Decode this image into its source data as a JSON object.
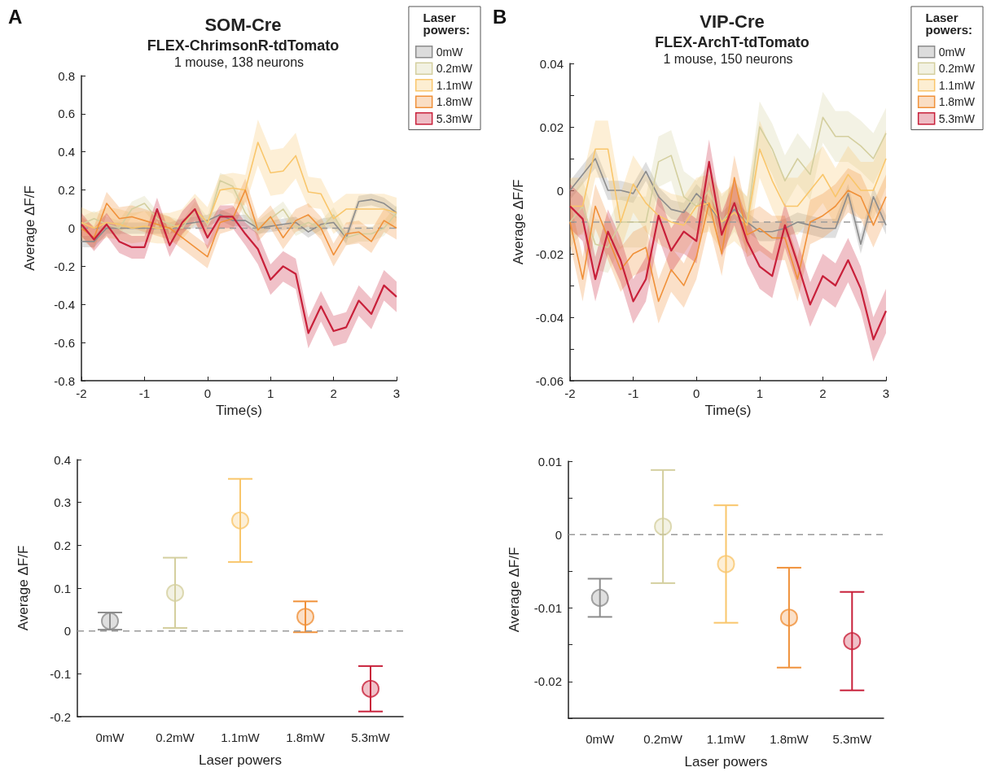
{
  "chart_data": [
    {
      "type": "line",
      "title": "SOM-Cre",
      "subtitle": "FLEX-ChrimsonR-tdTomato",
      "annotations": [
        "A",
        "1 mouse, 138 neurons"
      ],
      "xlabel": "Time(s)",
      "ylabel": "Average ΔF/F",
      "legend_title": "Laser powers:",
      "legend": "top right",
      "marker": "none",
      "x": [
        -2,
        -1.8,
        -1.6,
        -1.4,
        -1.2,
        -1,
        -0.8,
        -0.6,
        -0.4,
        -0.2,
        0,
        0.2,
        0.4,
        0.6,
        0.8,
        1,
        1.2,
        1.4,
        1.6,
        1.8,
        2,
        2.2,
        2.4,
        2.6,
        2.8,
        3
      ],
      "xlim": [
        -2,
        3
      ],
      "xticks": [
        -2,
        -1,
        0,
        1,
        2,
        3
      ],
      "ylim": [
        -0.8,
        0.8
      ],
      "yticks": [
        -0.8,
        -0.6,
        -0.4,
        -0.2,
        0,
        0.2,
        0.4,
        0.6,
        0.8
      ],
      "ref_lines": [
        {
          "axis": "y",
          "value": 0,
          "color": "#9a9a9a",
          "line_style": "dashed"
        }
      ],
      "series": [
        {
          "name": "0mW",
          "color": "#8c8c8c",
          "values": [
            -0.07,
            -0.07,
            0,
            0,
            0,
            0,
            0,
            0,
            0.02,
            0.03,
            0.04,
            0.07,
            0.04,
            0.04,
            0,
            0.01,
            0.02,
            0.03,
            -0.02,
            0.02,
            0.03,
            -0.05,
            0.14,
            0.15,
            0.13,
            0.08
          ],
          "lower": [
            -0.1,
            -0.1,
            -0.03,
            -0.03,
            -0.03,
            -0.03,
            -0.03,
            -0.03,
            -0.01,
            0,
            0.01,
            0.04,
            0.01,
            0.01,
            -0.03,
            -0.02,
            -0.01,
            0,
            -0.05,
            -0.01,
            0,
            -0.08,
            0.11,
            0.12,
            0.1,
            0.05
          ],
          "upper": [
            -0.04,
            -0.04,
            0.03,
            0.03,
            0.03,
            0.03,
            0.03,
            0.03,
            0.05,
            0.06,
            0.07,
            0.1,
            0.07,
            0.07,
            0.03,
            0.04,
            0.05,
            0.06,
            0.01,
            0.05,
            0.06,
            -0.02,
            0.17,
            0.18,
            0.16,
            0.11
          ]
        },
        {
          "name": "0.2mW",
          "color": "#d4cf9f",
          "values": [
            0.02,
            0.05,
            0.02,
            0,
            0.1,
            0.13,
            0.05,
            0.02,
            0,
            0.1,
            0.02,
            0.25,
            0.22,
            0.08,
            0,
            0.05,
            0.1,
            0,
            0.03,
            0,
            0.07,
            -0.05,
            -0.03,
            -0.03,
            0,
            0.08
          ],
          "lower": [
            -0.02,
            0.01,
            -0.02,
            -0.04,
            0.06,
            0.09,
            0.01,
            -0.02,
            -0.04,
            0.06,
            -0.02,
            0.21,
            0.18,
            0.04,
            -0.04,
            0.01,
            0.06,
            -0.04,
            -0.01,
            -0.04,
            0.03,
            -0.09,
            -0.07,
            -0.07,
            -0.04,
            0.04
          ],
          "upper": [
            0.06,
            0.09,
            0.06,
            0.04,
            0.14,
            0.17,
            0.09,
            0.06,
            0.04,
            0.14,
            0.06,
            0.29,
            0.26,
            0.12,
            0.04,
            0.09,
            0.14,
            0.04,
            0.07,
            0.04,
            0.11,
            -0.01,
            0.01,
            0.01,
            0.04,
            0.12
          ]
        },
        {
          "name": "1.1mW",
          "color": "#f9c66b",
          "values": [
            0.03,
            0,
            0.03,
            0.02,
            0,
            0.01,
            0,
            0,
            0.02,
            0.1,
            0.03,
            0.2,
            0.21,
            0.2,
            0.45,
            0.29,
            0.3,
            0.38,
            0.19,
            0.18,
            0.05,
            0.1,
            0.1,
            0.1,
            0.1,
            0.08
          ],
          "lower": [
            -0.05,
            -0.08,
            -0.05,
            -0.06,
            -0.08,
            -0.07,
            -0.08,
            -0.08,
            -0.06,
            0.02,
            -0.05,
            0.12,
            0.13,
            0.12,
            0.33,
            0.17,
            0.18,
            0.26,
            0.11,
            0.1,
            -0.03,
            0.02,
            0.02,
            0.02,
            0.02,
            0
          ],
          "upper": [
            0.11,
            0.08,
            0.11,
            0.1,
            0.08,
            0.09,
            0.08,
            0.08,
            0.1,
            0.18,
            0.11,
            0.28,
            0.29,
            0.28,
            0.57,
            0.41,
            0.42,
            0.5,
            0.27,
            0.26,
            0.13,
            0.18,
            0.18,
            0.18,
            0.18,
            0.16
          ]
        },
        {
          "name": "1.8mW",
          "color": "#f0913a",
          "values": [
            0,
            -0.05,
            0.13,
            0.05,
            0.06,
            0.04,
            0.02,
            0,
            -0.05,
            -0.1,
            -0.15,
            0.03,
            0.05,
            0.2,
            -0.01,
            0.06,
            -0.05,
            0.04,
            0.07,
            0,
            -0.14,
            -0.03,
            -0.02,
            -0.07,
            0.04,
            0
          ],
          "lower": [
            -0.06,
            -0.11,
            0.07,
            -0.01,
            0,
            -0.02,
            -0.04,
            -0.06,
            -0.11,
            -0.16,
            -0.21,
            -0.03,
            -0.01,
            0.14,
            -0.07,
            0,
            -0.11,
            -0.02,
            0.01,
            -0.06,
            -0.2,
            -0.09,
            -0.08,
            -0.13,
            -0.02,
            -0.06
          ],
          "upper": [
            0.06,
            0.01,
            0.19,
            0.11,
            0.12,
            0.1,
            0.08,
            0.06,
            0.01,
            -0.04,
            -0.09,
            0.09,
            0.11,
            0.26,
            0.05,
            0.12,
            0.01,
            0.1,
            0.13,
            0.06,
            -0.08,
            0.03,
            0.04,
            -0.01,
            0.1,
            0.06
          ]
        },
        {
          "name": "5.3mW",
          "color": "#c8203a",
          "values": [
            0.02,
            -0.06,
            0.02,
            -0.07,
            -0.1,
            -0.1,
            0.1,
            -0.09,
            0.03,
            0.1,
            -0.05,
            0.06,
            0.06,
            -0.03,
            -0.11,
            -0.27,
            -0.2,
            -0.24,
            -0.55,
            -0.41,
            -0.54,
            -0.52,
            -0.38,
            -0.45,
            -0.3,
            -0.36
          ],
          "lower": [
            -0.04,
            -0.12,
            -0.04,
            -0.13,
            -0.16,
            -0.16,
            0.04,
            -0.15,
            -0.03,
            0.04,
            -0.11,
            0,
            0,
            -0.09,
            -0.19,
            -0.35,
            -0.28,
            -0.32,
            -0.63,
            -0.49,
            -0.62,
            -0.6,
            -0.46,
            -0.53,
            -0.38,
            -0.44
          ],
          "upper": [
            0.08,
            0,
            0.08,
            -0.01,
            -0.04,
            -0.04,
            0.16,
            -0.03,
            0.09,
            0.16,
            0.01,
            0.12,
            0.12,
            0.03,
            -0.03,
            -0.19,
            -0.12,
            -0.16,
            -0.47,
            -0.33,
            -0.46,
            -0.44,
            -0.3,
            -0.37,
            -0.22,
            -0.28
          ]
        }
      ]
    },
    {
      "type": "line",
      "title": "VIP-Cre",
      "subtitle": "FLEX-ArchT-tdTomato",
      "annotations": [
        "B",
        "1 mouse, 150 neurons"
      ],
      "xlabel": "Time(s)",
      "ylabel": "Average ΔF/F",
      "legend_title": "Laser powers:",
      "legend": "top right",
      "marker": "none",
      "x": [
        -2,
        -1.8,
        -1.6,
        -1.4,
        -1.2,
        -1,
        -0.8,
        -0.6,
        -0.4,
        -0.2,
        0,
        0.2,
        0.4,
        0.6,
        0.8,
        1,
        1.2,
        1.4,
        1.6,
        1.8,
        2,
        2.2,
        2.4,
        2.6,
        2.8,
        3
      ],
      "xlim": [
        -2,
        3
      ],
      "xticks": [
        -2,
        -1,
        0,
        1,
        2,
        3
      ],
      "ylim": [
        -0.06,
        0.04
      ],
      "yticks": [
        -0.06,
        {
          "value": -0.05,
          "label": null
        },
        -0.04,
        {
          "value": -0.03,
          "label": null
        },
        -0.02,
        {
          "value": -0.01,
          "label": null
        },
        0,
        {
          "value": 0.01,
          "label": null
        },
        0.02,
        {
          "value": 0.03,
          "label": null
        },
        0.04
      ],
      "ref_lines": [
        {
          "axis": "y",
          "value": -0.01,
          "color": "#9a9a9a",
          "line_style": "dashed"
        }
      ],
      "series": [
        {
          "name": "0mW",
          "color": "#8c8c8c",
          "values": [
            0,
            0.005,
            0.01,
            0,
            0,
            -0.001,
            0.006,
            -0.002,
            -0.006,
            -0.007,
            -0.001,
            -0.005,
            -0.01,
            -0.006,
            -0.01,
            -0.013,
            -0.013,
            -0.012,
            -0.01,
            -0.011,
            -0.012,
            -0.012,
            -0.001,
            -0.017,
            -0.002,
            -0.011
          ],
          "lower": [
            -0.003,
            0.002,
            0.007,
            -0.003,
            -0.003,
            -0.004,
            0.003,
            -0.005,
            -0.009,
            -0.01,
            -0.004,
            -0.008,
            -0.013,
            -0.009,
            -0.013,
            -0.016,
            -0.016,
            -0.015,
            -0.013,
            -0.014,
            -0.015,
            -0.015,
            -0.004,
            -0.02,
            -0.005,
            -0.014
          ],
          "upper": [
            0.003,
            0.008,
            0.013,
            0.003,
            0.003,
            0.002,
            0.009,
            0.001,
            -0.003,
            -0.004,
            0.002,
            -0.002,
            -0.007,
            -0.003,
            -0.007,
            -0.01,
            -0.01,
            -0.009,
            -0.007,
            -0.008,
            -0.009,
            -0.009,
            0.002,
            -0.014,
            0.001,
            -0.008
          ]
        },
        {
          "name": "0.2mW",
          "color": "#d4cf9f",
          "values": [
            -0.01,
            -0.005,
            -0.017,
            -0.018,
            -0.01,
            -0.01,
            -0.01,
            0.009,
            0.011,
            -0.002,
            -0.005,
            0,
            -0.01,
            -0.005,
            -0.01,
            0.02,
            0.013,
            0.003,
            0.01,
            0.005,
            0.023,
            0.017,
            0.017,
            0.014,
            0.01,
            0.018
          ],
          "lower": [
            -0.018,
            -0.013,
            -0.025,
            -0.026,
            -0.018,
            -0.018,
            -0.018,
            0.001,
            0.003,
            -0.01,
            -0.013,
            -0.008,
            -0.018,
            -0.013,
            -0.018,
            0.012,
            0.005,
            -0.005,
            0.002,
            -0.003,
            0.015,
            0.009,
            0.009,
            0.006,
            0.002,
            0.01
          ],
          "upper": [
            -0.002,
            0.003,
            -0.009,
            -0.01,
            -0.002,
            -0.002,
            -0.002,
            0.017,
            0.019,
            0.006,
            0.003,
            0.008,
            -0.002,
            0.003,
            -0.002,
            0.028,
            0.021,
            0.011,
            0.018,
            0.013,
            0.031,
            0.025,
            0.025,
            0.022,
            0.018,
            0.026
          ]
        },
        {
          "name": "1.1mW",
          "color": "#f9c66b",
          "values": [
            -0.005,
            -0.005,
            0.013,
            0.013,
            -0.01,
            0.002,
            -0.004,
            -0.008,
            -0.01,
            -0.011,
            -0.005,
            -0.004,
            -0.01,
            -0.007,
            -0.011,
            0.013,
            0.003,
            -0.005,
            -0.005,
            0,
            0.005,
            -0.002,
            0.005,
            0,
            0,
            0.01
          ],
          "lower": [
            -0.014,
            -0.014,
            0.004,
            0.004,
            -0.019,
            -0.007,
            -0.013,
            -0.017,
            -0.019,
            -0.02,
            -0.014,
            -0.013,
            -0.019,
            -0.016,
            -0.02,
            0.004,
            -0.006,
            -0.014,
            -0.014,
            -0.009,
            -0.004,
            -0.011,
            -0.004,
            -0.009,
            -0.009,
            0.001
          ],
          "upper": [
            0.004,
            0.004,
            0.022,
            0.022,
            -0.001,
            0.011,
            0.005,
            0.001,
            -0.001,
            -0.002,
            0.004,
            0.005,
            -0.001,
            0.002,
            -0.002,
            0.022,
            0.012,
            0.004,
            0.004,
            0.009,
            0.014,
            0.007,
            0.014,
            0.009,
            0.009,
            0.019
          ]
        },
        {
          "name": "1.8mW",
          "color": "#f0913a",
          "values": [
            -0.01,
            -0.028,
            -0.005,
            -0.015,
            -0.025,
            -0.02,
            -0.018,
            -0.035,
            -0.025,
            -0.03,
            -0.021,
            -0.004,
            -0.02,
            0.004,
            -0.014,
            -0.012,
            -0.015,
            -0.015,
            -0.028,
            -0.01,
            -0.008,
            -0.005,
            0,
            -0.002,
            -0.011,
            -0.002
          ],
          "lower": [
            -0.017,
            -0.035,
            -0.012,
            -0.022,
            -0.032,
            -0.027,
            -0.025,
            -0.042,
            -0.032,
            -0.037,
            -0.028,
            -0.011,
            -0.027,
            -0.003,
            -0.021,
            -0.019,
            -0.022,
            -0.022,
            -0.035,
            -0.017,
            -0.015,
            -0.012,
            -0.007,
            -0.009,
            -0.018,
            -0.009
          ],
          "upper": [
            -0.003,
            -0.021,
            0.002,
            -0.008,
            -0.018,
            -0.013,
            -0.011,
            -0.028,
            -0.018,
            -0.023,
            -0.014,
            0.003,
            -0.013,
            0.011,
            -0.007,
            -0.005,
            -0.008,
            -0.008,
            -0.021,
            -0.003,
            -0.001,
            0.002,
            0.007,
            0.005,
            -0.004,
            0.005
          ]
        },
        {
          "name": "5.3mW",
          "color": "#c8203a",
          "values": [
            -0.005,
            -0.009,
            -0.028,
            -0.013,
            -0.022,
            -0.035,
            -0.028,
            -0.008,
            -0.019,
            -0.013,
            -0.016,
            0.009,
            -0.014,
            -0.004,
            -0.016,
            -0.024,
            -0.027,
            -0.011,
            -0.023,
            -0.036,
            -0.027,
            -0.03,
            -0.022,
            -0.031,
            -0.047,
            -0.038
          ],
          "lower": [
            -0.012,
            -0.016,
            -0.035,
            -0.02,
            -0.029,
            -0.042,
            -0.035,
            -0.015,
            -0.026,
            -0.02,
            -0.023,
            0.002,
            -0.021,
            -0.011,
            -0.023,
            -0.031,
            -0.034,
            -0.018,
            -0.03,
            -0.043,
            -0.034,
            -0.037,
            -0.029,
            -0.038,
            -0.054,
            -0.045
          ],
          "upper": [
            0.002,
            -0.002,
            -0.021,
            -0.006,
            -0.015,
            -0.028,
            -0.021,
            -0.001,
            -0.012,
            -0.006,
            -0.009,
            0.016,
            -0.007,
            0.003,
            -0.009,
            -0.017,
            -0.02,
            -0.004,
            -0.016,
            -0.029,
            -0.02,
            -0.023,
            -0.015,
            -0.024,
            -0.04,
            -0.031
          ]
        }
      ]
    },
    {
      "type": "scatter",
      "xlabel": "Laser powers",
      "ylabel": "Average ΔF/F",
      "marker": "circle",
      "categories": [
        "0mW",
        "0.2mW",
        "1.1mW",
        "1.8mW",
        "5.3mW"
      ],
      "values": [
        0.023,
        0.089,
        0.258,
        0.033,
        -0.135
      ],
      "errors": [
        0.02,
        0.082,
        0.097,
        0.036,
        0.053
      ],
      "colors": [
        "#8c8c8c",
        "#d4cf9f",
        "#f9c66b",
        "#f0913a",
        "#c8203a"
      ],
      "ylim": [
        -0.2,
        0.4
      ],
      "yticks": [
        -0.2,
        -0.1,
        0,
        0.1,
        0.2,
        0.3,
        0.4
      ],
      "ref_lines": [
        {
          "axis": "y",
          "value": 0,
          "color": "#9a9a9a",
          "line_style": "dashed"
        }
      ]
    },
    {
      "type": "scatter",
      "xlabel": "Laser powers",
      "ylabel": "Average ΔF/F",
      "marker": "circle",
      "categories": [
        "0mW",
        "0.2mW",
        "1.1mW",
        "1.8mW",
        "5.3mW"
      ],
      "values": [
        -0.0086,
        0.0011,
        -0.004,
        -0.0113,
        -0.0145
      ],
      "errors": [
        0.0026,
        0.0077,
        0.008,
        0.0068,
        0.0067
      ],
      "colors": [
        "#8c8c8c",
        "#d4cf9f",
        "#f9c66b",
        "#f0913a",
        "#c8203a"
      ],
      "ylim": [
        -0.025,
        0.01
      ],
      "yticks": [
        {
          "value": -0.025,
          "label": null
        },
        -0.02,
        {
          "value": -0.015,
          "label": null
        },
        -0.01,
        {
          "value": -0.005,
          "label": null
        },
        0,
        {
          "value": 0.005,
          "label": null
        },
        0.01
      ],
      "ref_lines": [
        {
          "axis": "y",
          "value": 0,
          "color": "#9a9a9a",
          "line_style": "dashed"
        }
      ]
    }
  ]
}
